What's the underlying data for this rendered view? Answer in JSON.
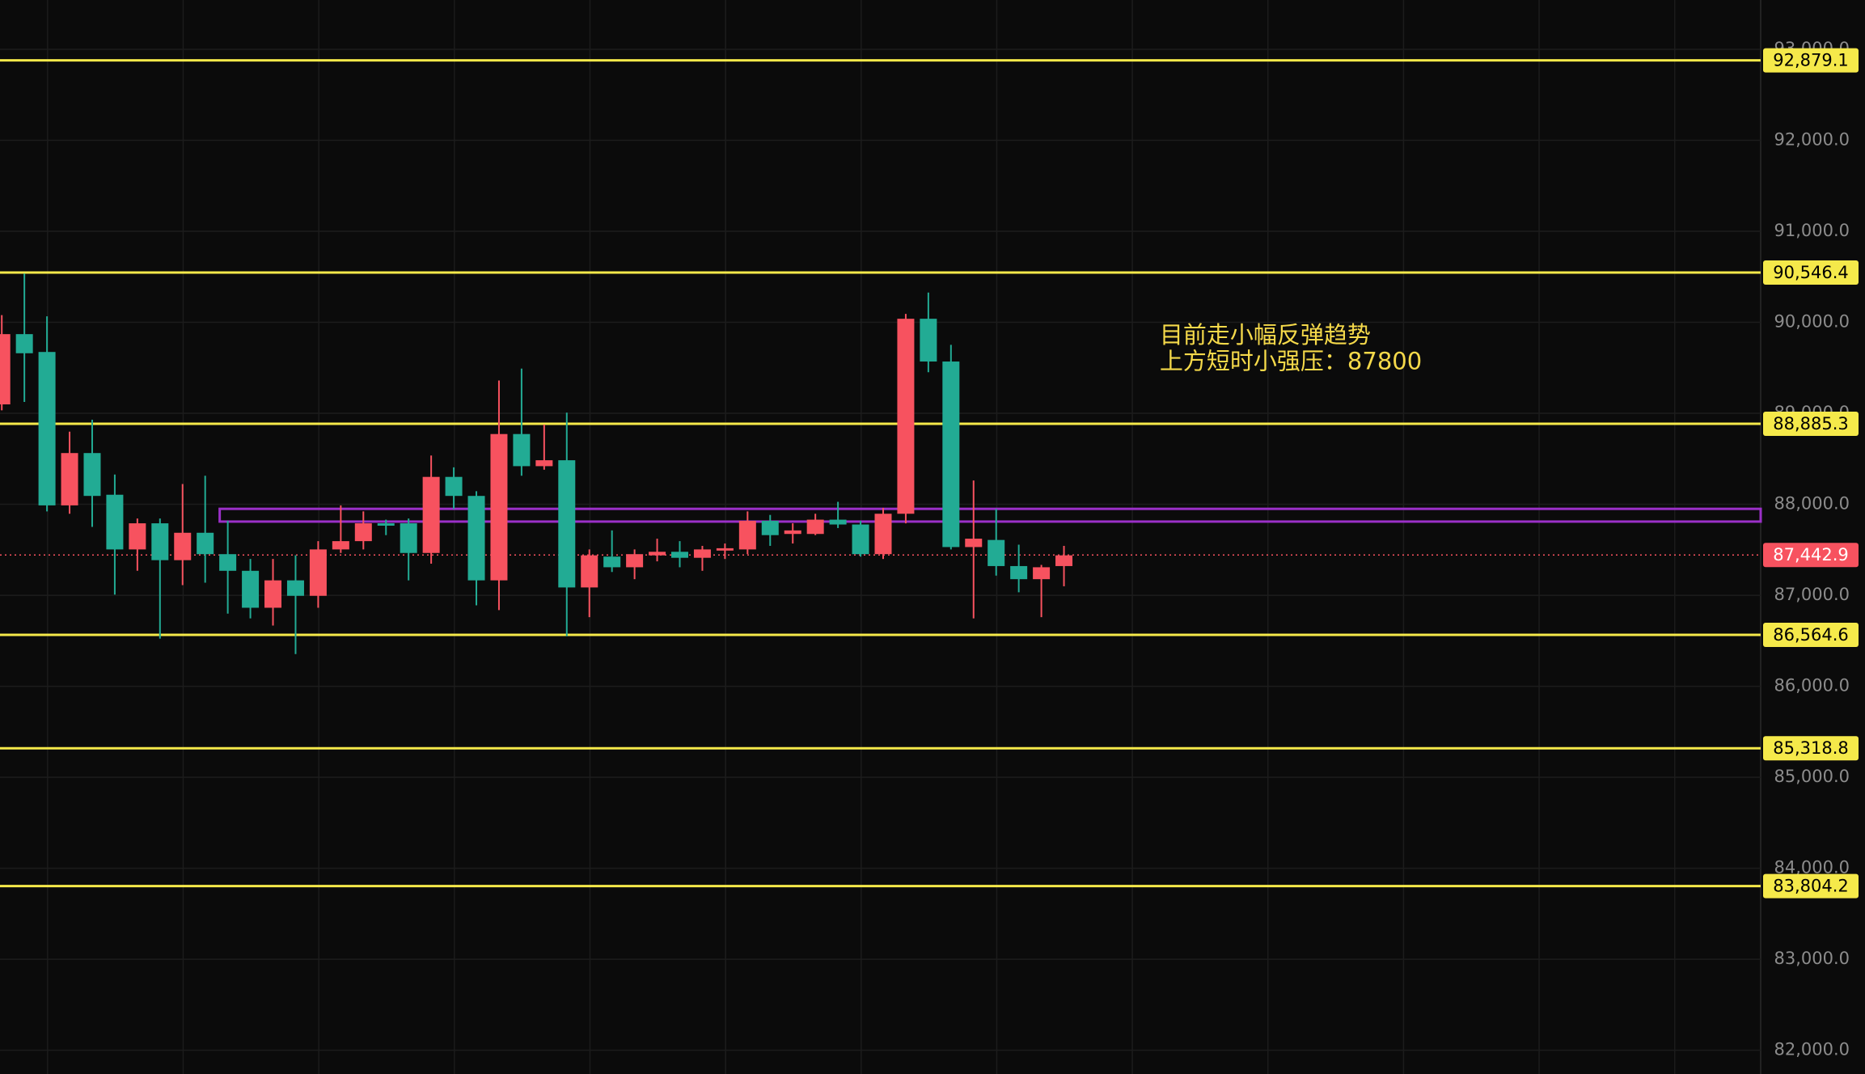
{
  "chart_data": {
    "type": "candlestick",
    "background": "#0b0b0b",
    "grid": true,
    "up_color": "#f7525f",
    "down_color": "#22ab94",
    "categories": [
      null,
      null,
      null,
      null,
      null,
      null,
      null,
      null,
      null,
      null,
      null,
      null,
      null,
      null,
      null,
      null,
      null,
      null,
      null,
      null,
      null,
      null,
      null,
      null,
      null,
      null,
      null,
      null,
      null,
      null,
      null,
      null,
      null,
      null,
      null,
      null,
      null,
      null,
      null,
      null,
      null,
      null,
      null,
      null,
      null,
      null,
      null,
      null
    ],
    "open": [
      89098,
      89870,
      89674,
      87988,
      88563,
      88105,
      87504,
      87791,
      87386,
      87687,
      87452,
      87269,
      86863,
      87164,
      86994,
      87504,
      87595,
      87791,
      87791,
      87465,
      88301,
      88092,
      87164,
      88772,
      88419,
      88484,
      87086,
      87425,
      87308,
      87439,
      87478,
      87412,
      87491,
      87504,
      87818,
      87674,
      87674,
      87831,
      87778,
      87452,
      87896,
      90039,
      89569,
      87530,
      87608,
      87321,
      87177,
      87321
    ],
    "high": [
      90079,
      90536,
      90066,
      88798,
      88929,
      88327,
      87844,
      87844,
      88223,
      88314,
      87818,
      87399,
      87399,
      87439,
      87595,
      87988,
      87922,
      87831,
      87844,
      88536,
      88406,
      88144,
      89360,
      89491,
      88876,
      89007,
      87504,
      87713,
      87504,
      87622,
      87595,
      87543,
      87569,
      87922,
      87883,
      87791,
      87896,
      88027,
      87818,
      87961,
      90092,
      90327,
      89752,
      88262,
      87948,
      87556,
      87334,
      87543
    ],
    "low": [
      89033,
      89125,
      87922,
      87896,
      87752,
      87007,
      87269,
      86524,
      87112,
      87138,
      86798,
      86746,
      86667,
      86354,
      86863,
      87465,
      87504,
      87661,
      87164,
      87347,
      87948,
      86890,
      86837,
      88314,
      88380,
      86550,
      86759,
      87256,
      87177,
      87373,
      87308,
      87269,
      87399,
      87452,
      87543,
      87569,
      87661,
      87739,
      87425,
      87399,
      87791,
      89451,
      87504,
      86746,
      87216,
      87033,
      86759,
      87099
    ],
    "close": [
      89870,
      89660,
      87988,
      88563,
      88092,
      87504,
      87791,
      87386,
      87687,
      87452,
      87269,
      86863,
      87164,
      86994,
      87504,
      87595,
      87791,
      87765,
      87465,
      88301,
      88092,
      87164,
      88772,
      88419,
      88484,
      87086,
      87439,
      87308,
      87452,
      87478,
      87412,
      87504,
      87517,
      87818,
      87661,
      87713,
      87831,
      87778,
      87452,
      87896,
      90039,
      89569,
      87530,
      87622,
      87321,
      87177,
      87308,
      87439
    ],
    "ylim": [
      81739,
      93542
    ],
    "yticks": [
      {
        "value": 82000,
        "label": "82,000.0"
      },
      {
        "value": 83000,
        "label": "83,000.0"
      },
      {
        "value": 84000,
        "label": "84,000.0"
      },
      {
        "value": 85000,
        "label": "85,000.0"
      },
      {
        "value": 86000,
        "label": "86,000.0"
      },
      {
        "value": 87000,
        "label": "87,000.0"
      },
      {
        "value": 88000,
        "label": "88,000.0"
      },
      {
        "value": 89000,
        "label": "89,000.0"
      },
      {
        "value": 90000,
        "label": "90,000.0"
      },
      {
        "value": 91000,
        "label": "91,000.0"
      },
      {
        "value": 92000,
        "label": "92,000.0"
      },
      {
        "value": 93000,
        "label": "93,000.0"
      }
    ],
    "level_color": "#f5e94a",
    "levels": [
      {
        "value": 92879.1,
        "label": "92,879.1"
      },
      {
        "value": 90546.4,
        "label": "90,546.4"
      },
      {
        "value": 88885.3,
        "label": "88,885.3"
      },
      {
        "value": 86564.6,
        "label": "86,564.6"
      },
      {
        "value": 85318.8,
        "label": "85,318.8"
      },
      {
        "value": 83804.2,
        "label": "83,804.2"
      }
    ],
    "last_price": {
      "value": 87442.9,
      "label": "87,442.9"
    },
    "zone": {
      "start": 10,
      "low": 87810,
      "high": 87950,
      "color": "#9b30c8"
    },
    "annotation_color": "#f5d94a",
    "annotations": [
      "目前走小幅反弹趋势",
      "上方短时小强压：87800"
    ]
  }
}
